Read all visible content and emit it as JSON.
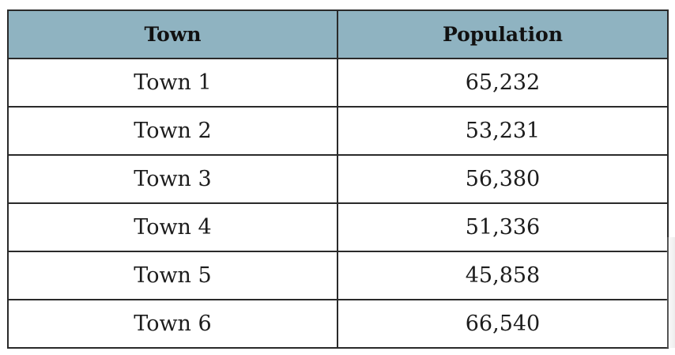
{
  "table": {
    "headers": {
      "town": "Town",
      "population": "Population"
    },
    "rows": [
      {
        "town": "Town 1",
        "population": "65,232"
      },
      {
        "town": "Town 2",
        "population": "53,231"
      },
      {
        "town": "Town 3",
        "population": "56,380"
      },
      {
        "town": "Town 4",
        "population": "51,336"
      },
      {
        "town": "Town 5",
        "population": "45,858"
      },
      {
        "town": "Town 6",
        "population": "66,540"
      }
    ]
  },
  "colors": {
    "header_background": "#8fb3c1",
    "border": "#2a2a2a",
    "text": "#1c1c1c"
  }
}
